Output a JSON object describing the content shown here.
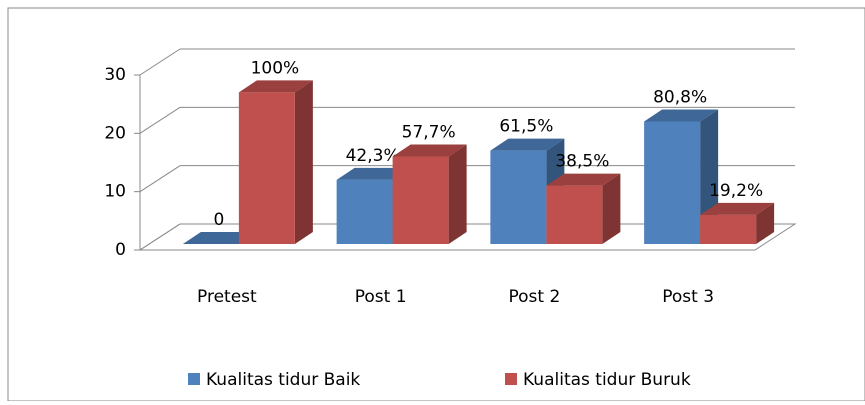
{
  "chart_data": {
    "type": "bar3d",
    "categories": [
      "Pretest",
      "Post 1",
      "Post 2",
      "Post 3"
    ],
    "series": [
      {
        "name": "Kualitas tidur Baik",
        "color": "#4f81bd",
        "values": [
          0,
          11,
          16,
          21
        ],
        "value_labels": [
          "0",
          "42,3%",
          "61,5%",
          "80,8%"
        ]
      },
      {
        "name": "Kualitas tidur Buruk",
        "color": "#c0504d",
        "values": [
          26,
          15,
          10,
          5
        ],
        "value_labels": [
          "100%",
          "57,7%",
          "38,5%",
          "19,2%"
        ]
      }
    ],
    "ylim": [
      0,
      30
    ],
    "yticks": [
      0,
      10,
      20,
      30
    ],
    "grid": true,
    "legend": "bottom"
  }
}
